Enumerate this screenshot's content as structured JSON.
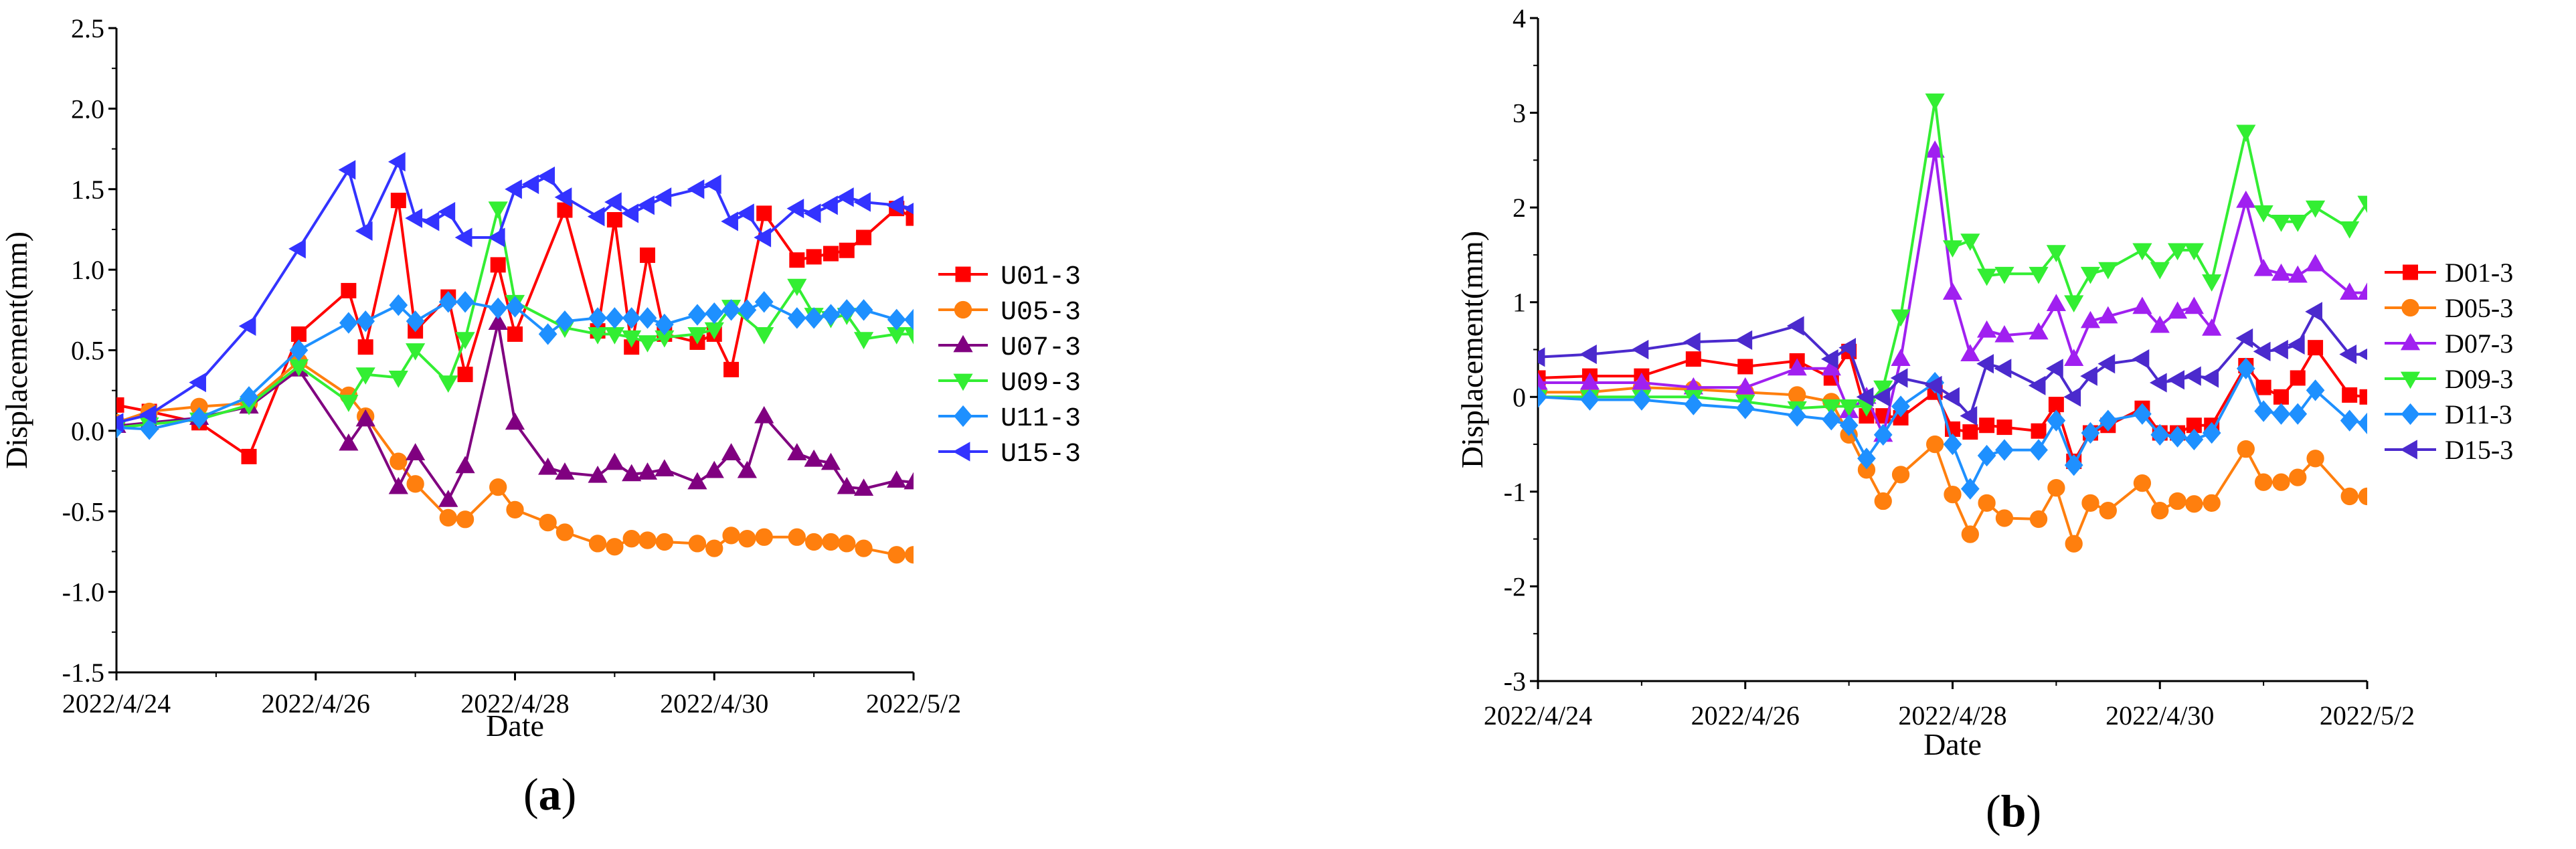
{
  "chart_data": [
    {
      "type": "line",
      "panel_label": {
        "open": "(",
        "letter": "a",
        "close": ")"
      },
      "xlabel": "Date",
      "ylabel": "Displacement(mm)",
      "xlim": [
        0,
        8
      ],
      "ylim": [
        -1.5,
        2.5
      ],
      "ytick_step": 0.5,
      "ytick_decimals": 1,
      "xtick_labels": [
        "2022/4/24",
        "2022/4/26",
        "2022/4/28",
        "2022/4/30",
        "2022/5/2"
      ],
      "legend_position": "right",
      "series": [
        {
          "name": "U01-3",
          "color": "#ff0000",
          "marker": "square",
          "x": [
            0,
            0.33,
            0.83,
            1.33,
            1.83,
            2.33,
            2.5,
            2.83,
            3.0,
            3.33,
            3.5,
            3.83,
            4.0,
            4.5,
            4.83,
            5.0,
            5.17,
            5.33,
            5.5,
            5.83,
            6.0,
            6.17,
            6.5,
            6.83,
            7.0,
            7.17,
            7.33,
            7.5,
            7.83,
            8.0
          ],
          "y": [
            0.16,
            0.12,
            0.05,
            -0.16,
            0.6,
            0.87,
            0.52,
            1.43,
            0.62,
            0.83,
            0.35,
            1.03,
            0.6,
            1.37,
            0.62,
            1.31,
            0.52,
            1.09,
            0.6,
            0.55,
            0.6,
            0.38,
            1.35,
            1.06,
            1.08,
            1.1,
            1.12,
            1.2,
            1.38,
            1.32
          ]
        },
        {
          "name": "U05-3",
          "color": "#ff7f0e",
          "marker": "circle",
          "x": [
            0,
            0.33,
            0.83,
            1.33,
            1.83,
            2.33,
            2.5,
            2.83,
            3.0,
            3.33,
            3.5,
            3.83,
            4.0,
            4.33,
            4.5,
            4.83,
            5.0,
            5.17,
            5.33,
            5.5,
            5.83,
            6.0,
            6.17,
            6.33,
            6.5,
            6.83,
            7.0,
            7.17,
            7.33,
            7.5,
            7.83,
            8.0
          ],
          "y": [
            0.05,
            0.12,
            0.15,
            0.17,
            0.43,
            0.22,
            0.09,
            -0.19,
            -0.33,
            -0.54,
            -0.55,
            -0.35,
            -0.49,
            -0.57,
            -0.63,
            -0.7,
            -0.72,
            -0.67,
            -0.68,
            -0.69,
            -0.7,
            -0.73,
            -0.65,
            -0.67,
            -0.66,
            -0.66,
            -0.69,
            -0.69,
            -0.7,
            -0.73,
            -0.77,
            -0.77
          ]
        },
        {
          "name": "U07-3",
          "color": "#800080",
          "marker": "triangle-up",
          "x": [
            0,
            0.33,
            0.83,
            1.33,
            1.83,
            2.33,
            2.5,
            2.83,
            3.0,
            3.33,
            3.5,
            3.83,
            4.0,
            4.33,
            4.5,
            4.83,
            5.0,
            5.17,
            5.33,
            5.5,
            5.83,
            6.0,
            6.17,
            6.33,
            6.5,
            6.83,
            7.0,
            7.17,
            7.33,
            7.5,
            7.83,
            8.0
          ],
          "y": [
            0.03,
            0.05,
            0.08,
            0.15,
            0.38,
            -0.08,
            0.07,
            -0.35,
            -0.14,
            -0.43,
            -0.22,
            0.67,
            0.05,
            -0.23,
            -0.26,
            -0.28,
            -0.2,
            -0.27,
            -0.26,
            -0.24,
            -0.32,
            -0.25,
            -0.14,
            -0.25,
            0.09,
            -0.14,
            -0.18,
            -0.2,
            -0.35,
            -0.36,
            -0.31,
            -0.32
          ]
        },
        {
          "name": "U09-3",
          "color": "#33ee33",
          "marker": "triangle-down",
          "x": [
            0,
            0.33,
            0.83,
            1.33,
            1.83,
            2.33,
            2.5,
            2.83,
            3.0,
            3.33,
            3.5,
            3.83,
            4.0,
            4.5,
            4.83,
            5.0,
            5.17,
            5.33,
            5.5,
            5.83,
            6.0,
            6.17,
            6.5,
            6.83,
            7.0,
            7.17,
            7.33,
            7.5,
            7.83,
            8.0
          ],
          "y": [
            0.02,
            0.04,
            0.07,
            0.16,
            0.4,
            0.18,
            0.35,
            0.33,
            0.5,
            0.3,
            0.57,
            1.38,
            0.8,
            0.64,
            0.6,
            0.6,
            0.58,
            0.55,
            0.58,
            0.6,
            0.63,
            0.77,
            0.6,
            0.9,
            0.72,
            0.7,
            0.72,
            0.57,
            0.6,
            0.6
          ]
        },
        {
          "name": "U11-3",
          "color": "#1e90ff",
          "marker": "diamond",
          "x": [
            0,
            0.33,
            0.83,
            1.33,
            1.83,
            2.33,
            2.5,
            2.83,
            3.0,
            3.33,
            3.5,
            3.83,
            4.0,
            4.33,
            4.5,
            4.83,
            5.0,
            5.17,
            5.33,
            5.5,
            5.83,
            6.0,
            6.17,
            6.33,
            6.5,
            6.83,
            7.0,
            7.17,
            7.33,
            7.5,
            7.83,
            8.0
          ],
          "y": [
            0.02,
            0.01,
            0.08,
            0.21,
            0.5,
            0.67,
            0.68,
            0.78,
            0.68,
            0.8,
            0.8,
            0.76,
            0.77,
            0.6,
            0.68,
            0.7,
            0.7,
            0.7,
            0.7,
            0.66,
            0.72,
            0.73,
            0.75,
            0.75,
            0.8,
            0.7,
            0.7,
            0.72,
            0.75,
            0.75,
            0.69,
            0.69
          ]
        },
        {
          "name": "U15-3",
          "color": "#3333ff",
          "marker": "triangle-left",
          "x": [
            0,
            0.33,
            0.83,
            1.33,
            1.83,
            2.33,
            2.5,
            2.83,
            3.0,
            3.17,
            3.33,
            3.5,
            3.83,
            4.0,
            4.17,
            4.33,
            4.5,
            4.83,
            5.0,
            5.17,
            5.33,
            5.5,
            5.83,
            6.0,
            6.17,
            6.33,
            6.5,
            6.83,
            7.0,
            7.17,
            7.33,
            7.5,
            7.83,
            8.0
          ],
          "y": [
            0.05,
            0.1,
            0.3,
            0.65,
            1.13,
            1.62,
            1.24,
            1.67,
            1.32,
            1.3,
            1.36,
            1.2,
            1.2,
            1.5,
            1.53,
            1.58,
            1.45,
            1.33,
            1.42,
            1.35,
            1.4,
            1.45,
            1.5,
            1.53,
            1.3,
            1.35,
            1.2,
            1.38,
            1.35,
            1.4,
            1.45,
            1.42,
            1.4,
            1.38
          ]
        }
      ]
    },
    {
      "type": "line",
      "panel_label": {
        "open": "(",
        "letter": "b",
        "close": ")"
      },
      "xlabel": "Date",
      "ylabel": "Displacement(mm)",
      "xlim": [
        0,
        8
      ],
      "ylim": [
        -3,
        4
      ],
      "ytick_step": 1,
      "ytick_decimals": 0,
      "xtick_labels": [
        "2022/4/24",
        "2022/4/26",
        "2022/4/28",
        "2022/4/30",
        "2022/5/2"
      ],
      "legend_position": "right",
      "series": [
        {
          "name": "D01-3",
          "color": "#ff0000",
          "marker": "square",
          "x": [
            0,
            0.5,
            1.0,
            1.5,
            2.0,
            2.5,
            2.83,
            3.0,
            3.17,
            3.33,
            3.5,
            3.83,
            4.0,
            4.17,
            4.33,
            4.5,
            4.83,
            5.0,
            5.17,
            5.33,
            5.5,
            5.83,
            6.0,
            6.17,
            6.33,
            6.5,
            6.83,
            7.0,
            7.17,
            7.33,
            7.5,
            7.83,
            8.0
          ],
          "y": [
            0.2,
            0.22,
            0.22,
            0.4,
            0.32,
            0.38,
            0.2,
            0.48,
            -0.2,
            -0.2,
            -0.22,
            0.05,
            -0.34,
            -0.37,
            -0.3,
            -0.32,
            -0.36,
            -0.08,
            -0.68,
            -0.38,
            -0.3,
            -0.12,
            -0.38,
            -0.38,
            -0.3,
            -0.3,
            0.33,
            0.1,
            0.0,
            0.2,
            0.52,
            0.02,
            0.0
          ]
        },
        {
          "name": "D05-3",
          "color": "#ff7f0e",
          "marker": "circle",
          "x": [
            0,
            0.5,
            1.0,
            1.5,
            2.0,
            2.5,
            2.83,
            3.0,
            3.17,
            3.33,
            3.5,
            3.83,
            4.0,
            4.17,
            4.33,
            4.5,
            4.83,
            5.0,
            5.17,
            5.33,
            5.5,
            5.83,
            6.0,
            6.17,
            6.33,
            6.5,
            6.83,
            7.0,
            7.17,
            7.33,
            7.5,
            7.83,
            8.0
          ],
          "y": [
            0.05,
            0.05,
            0.1,
            0.08,
            0.05,
            0.02,
            -0.05,
            -0.4,
            -0.77,
            -1.1,
            -0.82,
            -0.5,
            -1.03,
            -1.45,
            -1.12,
            -1.28,
            -1.29,
            -0.96,
            -1.55,
            -1.12,
            -1.2,
            -0.91,
            -1.2,
            -1.1,
            -1.13,
            -1.12,
            -0.55,
            -0.9,
            -0.9,
            -0.85,
            -0.65,
            -1.05,
            -1.05
          ]
        },
        {
          "name": "D07-3",
          "color": "#a020f0",
          "marker": "triangle-up",
          "x": [
            0,
            0.5,
            1.0,
            1.5,
            2.0,
            2.5,
            2.83,
            3.0,
            3.17,
            3.33,
            3.5,
            3.83,
            4.0,
            4.17,
            4.33,
            4.5,
            4.83,
            5.0,
            5.17,
            5.33,
            5.5,
            5.83,
            6.0,
            6.17,
            6.33,
            6.5,
            6.83,
            7.0,
            7.17,
            7.33,
            7.5,
            7.83,
            8.0
          ],
          "y": [
            0.15,
            0.15,
            0.15,
            0.1,
            0.1,
            0.3,
            0.3,
            -0.15,
            0.0,
            -0.4,
            0.4,
            2.6,
            1.1,
            0.45,
            0.7,
            0.65,
            0.68,
            0.98,
            0.4,
            0.8,
            0.85,
            0.95,
            0.75,
            0.9,
            0.95,
            0.72,
            2.07,
            1.35,
            1.3,
            1.28,
            1.4,
            1.1,
            1.1
          ]
        },
        {
          "name": "D09-3",
          "color": "#33ee33",
          "marker": "triangle-down",
          "x": [
            0,
            0.5,
            1.0,
            1.5,
            2.0,
            2.5,
            2.83,
            3.0,
            3.17,
            3.33,
            3.5,
            3.83,
            4.0,
            4.17,
            4.33,
            4.5,
            4.83,
            5.0,
            5.17,
            5.33,
            5.5,
            5.83,
            6.0,
            6.17,
            6.33,
            6.5,
            6.83,
            7.0,
            7.17,
            7.33,
            7.5,
            7.83,
            8.0
          ],
          "y": [
            0.0,
            0.0,
            0.0,
            0.0,
            -0.05,
            -0.12,
            -0.1,
            -0.1,
            -0.1,
            0.1,
            0.85,
            3.13,
            1.58,
            1.65,
            1.28,
            1.3,
            1.3,
            1.53,
            1.0,
            1.3,
            1.35,
            1.55,
            1.35,
            1.55,
            1.55,
            1.22,
            2.8,
            1.95,
            1.85,
            1.85,
            2.0,
            1.78,
            2.05
          ]
        },
        {
          "name": "D11-3",
          "color": "#1e90ff",
          "marker": "diamond",
          "x": [
            0,
            0.5,
            1.0,
            1.5,
            2.0,
            2.5,
            2.83,
            3.0,
            3.17,
            3.33,
            3.5,
            3.83,
            4.0,
            4.17,
            4.33,
            4.5,
            4.83,
            5.0,
            5.17,
            5.33,
            5.5,
            5.83,
            6.0,
            6.17,
            6.33,
            6.5,
            6.83,
            7.0,
            7.17,
            7.33,
            7.5,
            7.83,
            8.0
          ],
          "y": [
            0.0,
            -0.03,
            -0.03,
            -0.08,
            -0.12,
            -0.2,
            -0.24,
            -0.3,
            -0.65,
            -0.4,
            -0.1,
            0.15,
            -0.5,
            -0.97,
            -0.62,
            -0.56,
            -0.56,
            -0.25,
            -0.72,
            -0.38,
            -0.25,
            -0.18,
            -0.4,
            -0.42,
            -0.45,
            -0.38,
            0.3,
            -0.15,
            -0.18,
            -0.18,
            0.07,
            -0.25,
            -0.28
          ]
        },
        {
          "name": "D15-3",
          "color": "#4b2acd",
          "marker": "triangle-left",
          "x": [
            0,
            0.5,
            1.0,
            1.5,
            2.0,
            2.5,
            2.83,
            3.0,
            3.17,
            3.33,
            3.5,
            3.83,
            4.0,
            4.17,
            4.33,
            4.5,
            4.83,
            5.0,
            5.17,
            5.33,
            5.5,
            5.83,
            6.0,
            6.17,
            6.33,
            6.5,
            6.83,
            7.0,
            7.17,
            7.33,
            7.5,
            7.83,
            8.0
          ],
          "y": [
            0.42,
            0.45,
            0.5,
            0.58,
            0.6,
            0.75,
            0.4,
            0.52,
            0.0,
            0.0,
            0.2,
            0.12,
            0.0,
            -0.2,
            0.35,
            0.3,
            0.12,
            0.3,
            0.0,
            0.22,
            0.35,
            0.4,
            0.15,
            0.18,
            0.22,
            0.2,
            0.62,
            0.48,
            0.5,
            0.55,
            0.9,
            0.45,
            0.45
          ]
        }
      ]
    }
  ]
}
